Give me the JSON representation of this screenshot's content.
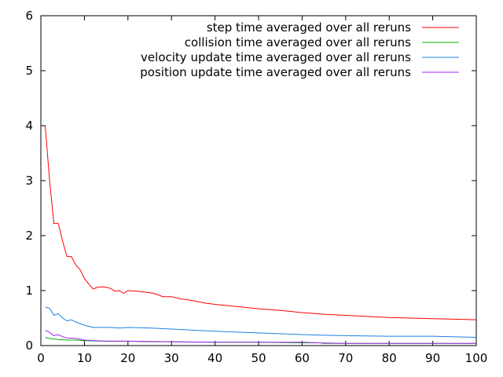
{
  "chart_data": {
    "type": "line",
    "title": "",
    "xlabel": "",
    "ylabel": "",
    "xlim": [
      0,
      100
    ],
    "ylim": [
      0,
      6
    ],
    "xticks": [
      "0",
      "10",
      "20",
      "30",
      "40",
      "50",
      "60",
      "70",
      "80",
      "90",
      "100"
    ],
    "yticks": [
      "0",
      "1",
      "2",
      "3",
      "4",
      "5",
      "6"
    ],
    "grid": false,
    "legend_position": "top-right",
    "series": [
      {
        "name": "step time averaged over all reruns",
        "color": "#ff0000",
        "x": [
          1,
          2,
          3,
          4,
          5,
          6,
          7,
          8,
          9,
          10,
          11,
          12,
          13,
          14,
          15,
          16,
          17,
          18,
          19,
          20,
          22,
          24,
          26,
          28,
          30,
          32,
          34,
          36,
          38,
          40,
          45,
          50,
          55,
          60,
          65,
          70,
          75,
          80,
          85,
          90,
          95,
          100
        ],
        "y": [
          4.0,
          3.0,
          2.22,
          2.22,
          1.9,
          1.62,
          1.62,
          1.47,
          1.38,
          1.22,
          1.12,
          1.03,
          1.06,
          1.07,
          1.06,
          1.04,
          0.99,
          1.0,
          0.95,
          1.0,
          0.99,
          0.97,
          0.95,
          0.89,
          0.89,
          0.85,
          0.83,
          0.8,
          0.77,
          0.75,
          0.71,
          0.67,
          0.64,
          0.6,
          0.57,
          0.55,
          0.53,
          0.51,
          0.5,
          0.49,
          0.48,
          0.47
        ]
      },
      {
        "name": "collision time averaged over all reruns",
        "color": "#00b000",
        "x": [
          1,
          2,
          3,
          4,
          6,
          8,
          10,
          15,
          20,
          25,
          30,
          40,
          50,
          60,
          64,
          65,
          70,
          80,
          90,
          100
        ],
        "y": [
          0.15,
          0.13,
          0.12,
          0.11,
          0.1,
          0.1,
          0.09,
          0.08,
          0.08,
          0.07,
          0.07,
          0.06,
          0.06,
          0.05,
          0.05,
          0.04,
          0.04,
          0.04,
          0.04,
          0.04
        ]
      },
      {
        "name": "velocity update time averaged over all reruns",
        "color": "#1e7fdf",
        "x": [
          1,
          2,
          3,
          4,
          5,
          6,
          7,
          8,
          9,
          10,
          11,
          12,
          14,
          16,
          18,
          20,
          25,
          30,
          35,
          40,
          50,
          60,
          65,
          70,
          80,
          90,
          100
        ],
        "y": [
          0.7,
          0.68,
          0.55,
          0.58,
          0.5,
          0.45,
          0.47,
          0.43,
          0.4,
          0.37,
          0.35,
          0.33,
          0.33,
          0.33,
          0.32,
          0.33,
          0.32,
          0.3,
          0.28,
          0.26,
          0.23,
          0.2,
          0.19,
          0.18,
          0.17,
          0.17,
          0.15
        ]
      },
      {
        "name": "position update time averaged over all reruns",
        "color": "#a020f0",
        "x": [
          1,
          2,
          3,
          4,
          5,
          6,
          8,
          10,
          15,
          20,
          30,
          40,
          50,
          60,
          64,
          70,
          80,
          90,
          100
        ],
        "y": [
          0.28,
          0.24,
          0.18,
          0.2,
          0.16,
          0.14,
          0.13,
          0.1,
          0.08,
          0.08,
          0.07,
          0.06,
          0.06,
          0.06,
          0.05,
          0.04,
          0.04,
          0.04,
          0.04
        ]
      }
    ]
  }
}
